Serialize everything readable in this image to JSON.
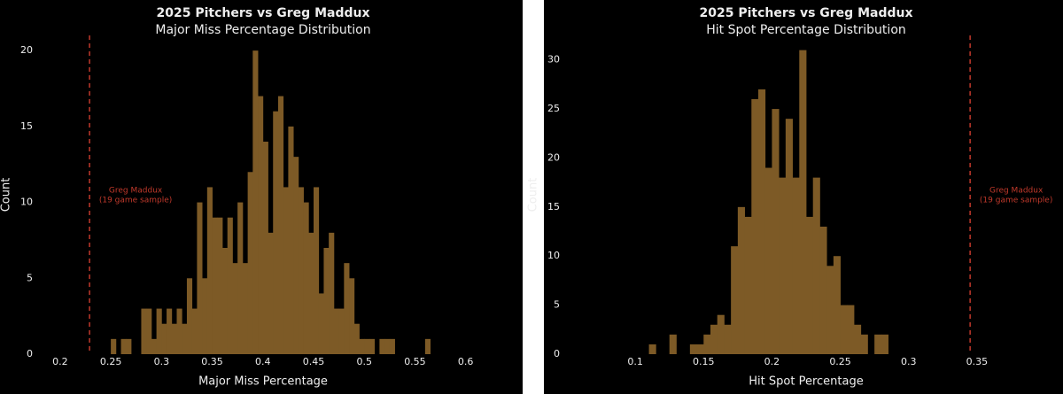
{
  "chart_data": [
    {
      "type": "histogram",
      "title": "2025 Pitchers vs Greg Maddux",
      "subtitle": "Major Miss Percentage Distribution",
      "x_label": "Major Miss Percentage",
      "y_label": "Count",
      "color": "#7d5a26",
      "bins": [
        0.25,
        0.255,
        0.26,
        0.265,
        0.27,
        0.275,
        0.28,
        0.285,
        0.29,
        0.295,
        0.3,
        0.305,
        0.31,
        0.315,
        0.32,
        0.325,
        0.33,
        0.335,
        0.34,
        0.345,
        0.35,
        0.355,
        0.36,
        0.365,
        0.37,
        0.375,
        0.38,
        0.385,
        0.39,
        0.395,
        0.4,
        0.405,
        0.41,
        0.415,
        0.42,
        0.425,
        0.43,
        0.435,
        0.44,
        0.445,
        0.45,
        0.455,
        0.46,
        0.465,
        0.47,
        0.475,
        0.48,
        0.485,
        0.49,
        0.495,
        0.5,
        0.505,
        0.51,
        0.515,
        0.52,
        0.525,
        0.53,
        0.535,
        0.54,
        0.545,
        0.55,
        0.555,
        0.56,
        0.565
      ],
      "values": [
        1,
        0,
        1,
        1,
        0,
        0,
        3,
        3,
        1,
        3,
        2,
        3,
        2,
        3,
        2,
        5,
        3,
        10,
        5,
        11,
        9,
        9,
        7,
        9,
        6,
        10,
        6,
        12,
        20,
        17,
        14,
        8,
        16,
        17,
        11,
        15,
        13,
        11,
        10,
        8,
        11,
        4,
        7,
        8,
        3,
        3,
        6,
        5,
        2,
        1,
        1,
        1,
        0,
        1,
        1,
        1,
        0,
        0,
        0,
        0,
        0,
        0,
        1
      ],
      "xlim": [
        0.18,
        0.63
      ],
      "xticks": [
        0.2,
        0.25,
        0.3,
        0.35,
        0.4,
        0.45,
        0.5,
        0.55,
        0.6
      ],
      "ylim": [
        0,
        21
      ],
      "yticks": [
        0,
        5,
        10,
        15,
        20
      ],
      "reference_line": {
        "x": 0.229,
        "color": "#c0392b",
        "label": [
          "Greg Maddux",
          "(19 game sample)"
        ]
      }
    },
    {
      "type": "histogram",
      "title": "2025 Pitchers vs Greg Maddux",
      "subtitle": "Hit Spot Percentage Distribution",
      "x_label": "Hit Spot Percentage",
      "y_label": "Count",
      "color": "#7d5a26",
      "bins": [
        0.11,
        0.115,
        0.12,
        0.125,
        0.13,
        0.135,
        0.14,
        0.145,
        0.15,
        0.155,
        0.16,
        0.165,
        0.17,
        0.175,
        0.18,
        0.185,
        0.19,
        0.195,
        0.2,
        0.205,
        0.21,
        0.215,
        0.22,
        0.225,
        0.23,
        0.235,
        0.24,
        0.245,
        0.25,
        0.255,
        0.26,
        0.265,
        0.27,
        0.275,
        0.28,
        0.285
      ],
      "values": [
        1,
        0,
        0,
        2,
        0,
        0,
        1,
        1,
        2,
        3,
        4,
        3,
        11,
        15,
        14,
        26,
        27,
        19,
        25,
        18,
        24,
        18,
        31,
        14,
        18,
        13,
        9,
        10,
        5,
        5,
        3,
        2,
        0,
        2,
        2
      ],
      "xlim": [
        0.05,
        0.4
      ],
      "xticks": [
        0.1,
        0.15,
        0.2,
        0.25,
        0.3,
        0.35
      ],
      "ylim": [
        0,
        32.5
      ],
      "yticks": [
        0,
        5,
        10,
        15,
        20,
        25,
        30
      ],
      "reference_line": {
        "x": 0.345,
        "color": "#c0392b",
        "label": [
          "Greg Maddux",
          "(19 game sample)"
        ]
      }
    }
  ]
}
